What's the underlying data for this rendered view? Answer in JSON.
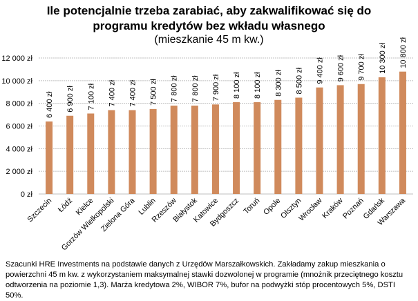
{
  "chart_data": {
    "type": "bar",
    "title": "Ile potencjalnie trzeba zarabiać, aby zakwalifikować się do",
    "title_line2": "programu kredytów bez wkładu własnego",
    "subtitle": "(mieszkanie 45 m kw.)",
    "categories": [
      "Szczecin",
      "Łódź",
      "Kielce",
      "Gorzów Wielkopolski",
      "Zielona Góra",
      "Lublin",
      "Rzeszów",
      "Białystok",
      "Katowice",
      "Bydgoszcz",
      "Toruń",
      "Opole",
      "Olsztyn",
      "Wrocław",
      "Kraków",
      "Poznań",
      "Gdańsk",
      "Warszawa"
    ],
    "values": [
      6400,
      6900,
      7100,
      7400,
      7400,
      7500,
      7800,
      7800,
      7900,
      8100,
      8100,
      8300,
      8500,
      9400,
      9600,
      9700,
      10300,
      10800
    ],
    "data_labels": [
      "6 400 zł",
      "6 900 zł",
      "7 100 zł",
      "7 400 zł",
      "7 400 zł",
      "7 500 zł",
      "7 800 zł",
      "7 800 zł",
      "7 900 zł",
      "8 100 zł",
      "8 100 zł",
      "8 300 zł",
      "8 500 zł",
      "9 400 zł",
      "9 600 zł",
      "9 700 zł",
      "10 300 zł",
      "10 800 zł"
    ],
    "y_ticks": [
      0,
      2000,
      4000,
      6000,
      8000,
      10000,
      12000
    ],
    "y_tick_labels": [
      "0 zł",
      "2 000 zł",
      "4 000 zł",
      "6 000 zł",
      "8 000 zł",
      "10 000 zł",
      "12 000 zł"
    ],
    "ylim": [
      0,
      12000
    ],
    "xlabel": "",
    "ylabel": "",
    "grid": true,
    "bar_color": "#D08A5C",
    "grid_color": "#BFBFBF"
  },
  "note": "Szacunki HRE Investments na podstawie danych z Urzędów Marszałkowskich. Zakładamy zakup mieszkania o powierzchni 45 m kw. z wykorzystaniem maksymalnej stawki dozwolonej w programie (mnożnik przeciętnego kosztu odtworzenia na poziomie 1,3). Marża kredytowa 2%, WIBOR 7%, bufor na podwyżki stóp procentowych 5%, DSTI 50%."
}
